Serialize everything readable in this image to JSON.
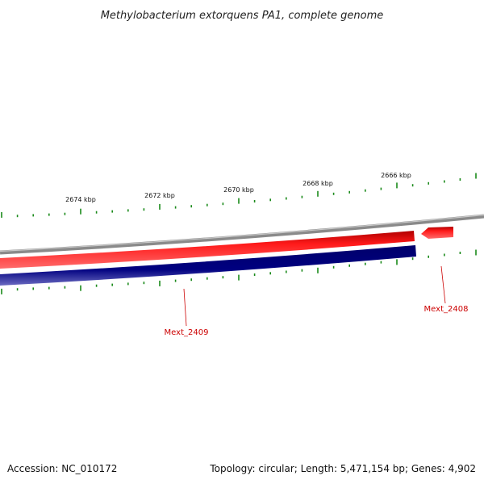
{
  "title": "Methylobacterium extorquens PA1, complete genome",
  "colors": {
    "backbone": "#7a7a7a",
    "forward_strand": "#ff0000",
    "reverse_strand": "#000080",
    "tick": "#1a8a1a",
    "label": "#cc0000"
  },
  "scale": {
    "unit": "kbp",
    "labels": [
      "2674 kbp",
      "2672 kbp",
      "2670 kbp",
      "2668 kbp",
      "2666 kbp"
    ]
  },
  "genes": [
    {
      "name": "Mext_2409",
      "strand": "forward"
    },
    {
      "name": "Mext_2408",
      "strand": "forward"
    }
  ],
  "footer": {
    "accession": "Accession: NC_010172",
    "summary": "Topology: circular; Length: 5,471,154 bp; Genes: 4,902"
  }
}
